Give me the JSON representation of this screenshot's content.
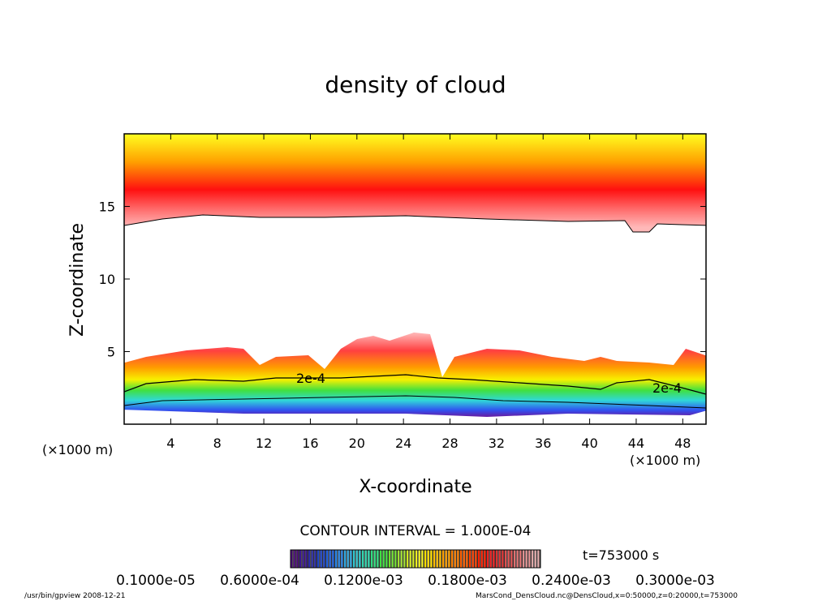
{
  "chart_data": {
    "type": "heatmap",
    "subtype": "filled-contour",
    "title": "density of cloud",
    "xlabel": "X-coordinate",
    "ylabel": "Z-coordinate",
    "x_unit_label": "(×1000 m)",
    "xlim": [
      0,
      50
    ],
    "ylim": [
      0,
      20
    ],
    "x_ticks": [
      4,
      8,
      12,
      16,
      20,
      24,
      28,
      32,
      36,
      40,
      44,
      48
    ],
    "y_ticks": [
      5,
      10,
      15
    ],
    "contour_labels": [
      "2e-4",
      "2e-4"
    ],
    "contour_interval_text": "CONTOUR INTERVAL = 1.000E-04",
    "colorbar": {
      "colors": [
        "#4b0a7a",
        "#3a1590",
        "#2a2aa8",
        "#1f45c8",
        "#2062e0",
        "#2a86e8",
        "#30a8e0",
        "#30c8d0",
        "#30d8b0",
        "#30e080",
        "#40e040",
        "#70e030",
        "#a0e030",
        "#d0e820",
        "#f0f020",
        "#ffe000",
        "#ffc000",
        "#ffa000",
        "#ff8000",
        "#ff6000",
        "#ff4000",
        "#ff2000",
        "#f02020",
        "#e03030",
        "#e05050",
        "#e07070",
        "#e09090",
        "#e0a8a8"
      ],
      "tick_labels": [
        "0.1000e-05",
        "0.6000e-04",
        "0.1200e-03",
        "0.1800e-03",
        "0.2400e-03",
        "0.3000e-03"
      ]
    },
    "time_label": "t=753000 s"
  },
  "footer": {
    "program": "/usr/bin/gpview   2008-12-21",
    "source": "MarsCond_DensCloud.nc@DensCloud,x=0:50000,z=0:20000,t=753000"
  }
}
